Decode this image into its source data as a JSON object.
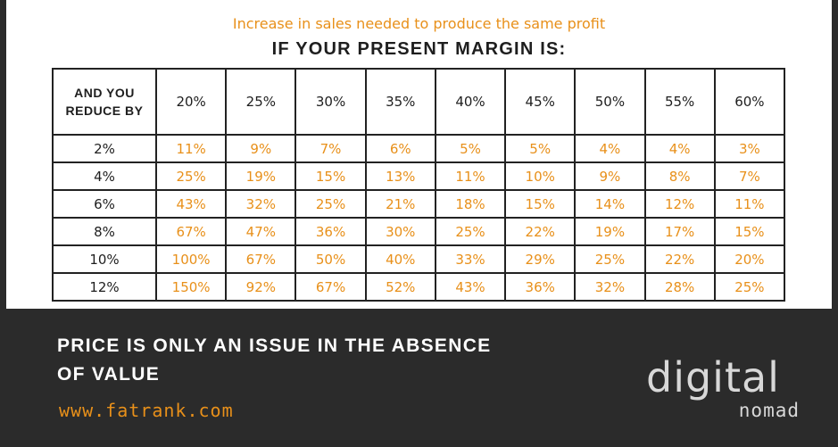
{
  "header": {
    "subtitle": "Increase in sales needed to produce the same profit",
    "title": "IF YOUR PRESENT MARGIN IS:"
  },
  "table": {
    "corner_label": [
      "AND YOU",
      "REDUCE BY"
    ],
    "columns": [
      "20%",
      "25%",
      "30%",
      "35%",
      "40%",
      "45%",
      "50%",
      "55%",
      "60%"
    ],
    "rows": [
      {
        "reduce": "2%",
        "values": [
          "11%",
          "9%",
          "7%",
          "6%",
          "5%",
          "5%",
          "4%",
          "4%",
          "3%"
        ]
      },
      {
        "reduce": "4%",
        "values": [
          "25%",
          "19%",
          "15%",
          "13%",
          "11%",
          "10%",
          "9%",
          "8%",
          "7%"
        ]
      },
      {
        "reduce": "6%",
        "values": [
          "43%",
          "32%",
          "25%",
          "21%",
          "18%",
          "15%",
          "14%",
          "12%",
          "11%"
        ]
      },
      {
        "reduce": "8%",
        "values": [
          "67%",
          "47%",
          "36%",
          "30%",
          "25%",
          "22%",
          "19%",
          "17%",
          "15%"
        ]
      },
      {
        "reduce": "10%",
        "values": [
          "100%",
          "67%",
          "50%",
          "40%",
          "33%",
          "29%",
          "25%",
          "22%",
          "20%"
        ]
      },
      {
        "reduce": "12%",
        "values": [
          "150%",
          "92%",
          "67%",
          "52%",
          "43%",
          "36%",
          "32%",
          "28%",
          "25%"
        ]
      }
    ]
  },
  "footer": {
    "quote_line1": "PRICE IS ONLY AN ISSUE IN THE ABSENCE",
    "quote_line2": "OF VALUE",
    "website": "www.fatrank.com",
    "logo_top": "digital",
    "logo_bottom": "nomad"
  },
  "colors": {
    "accent": "#e8901a",
    "background": "#2b2b2b",
    "panel": "#ffffff",
    "text": "#1e1e1e"
  }
}
